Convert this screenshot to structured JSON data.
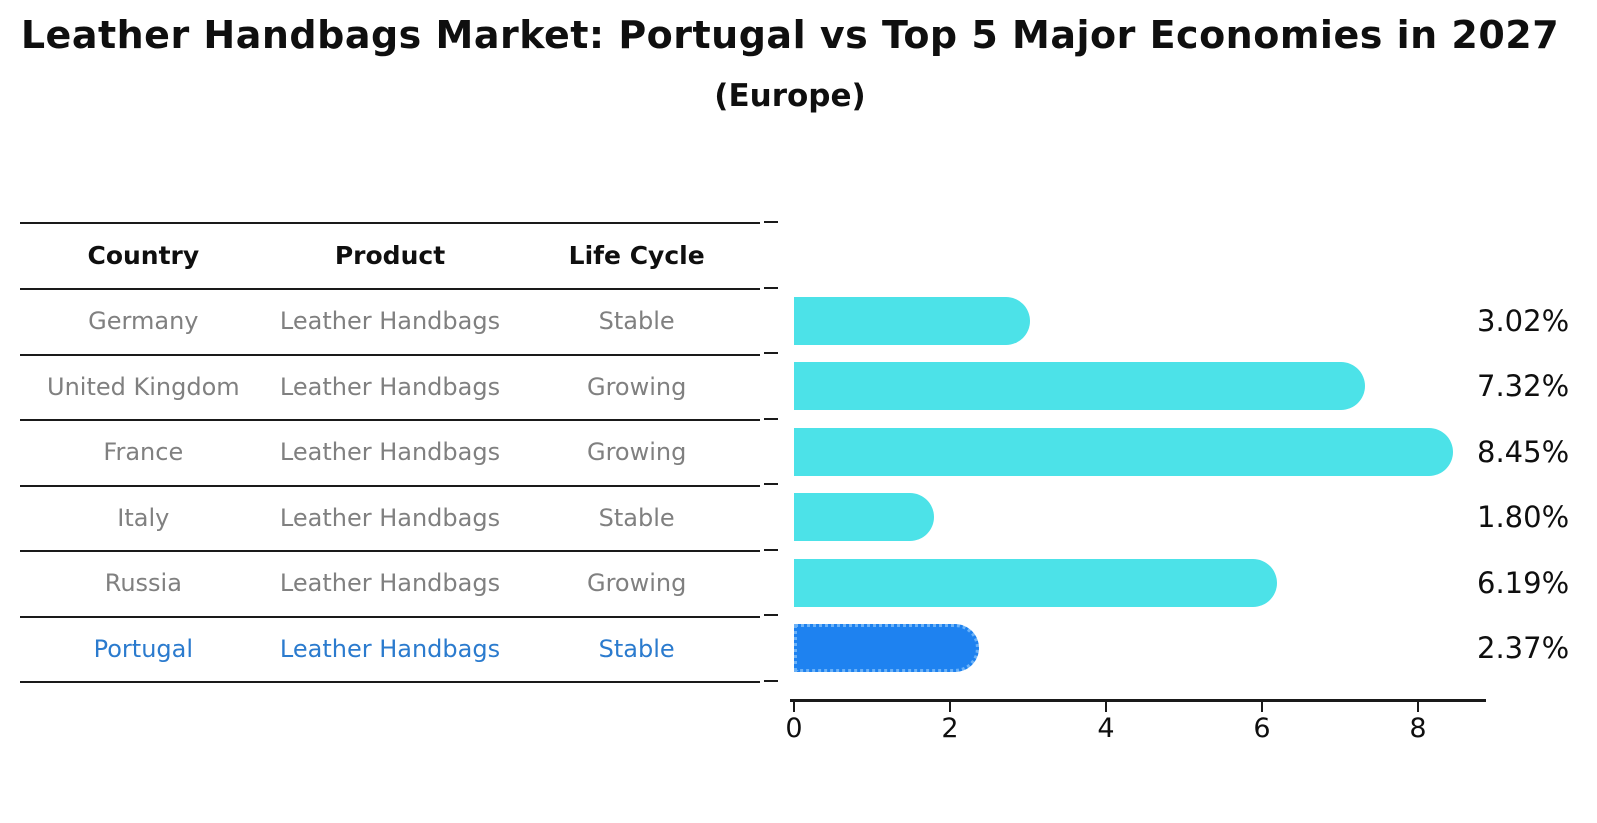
{
  "title": "Leather Handbags Market: Portugal vs Top 5 Major Economies in 2027",
  "subtitle": "(Europe)",
  "table": {
    "headers": [
      "Country",
      "Product",
      "Life Cycle"
    ],
    "highlight_text_color": "#2b7bce",
    "rows": [
      {
        "country": "Germany",
        "product": "Leather Handbags",
        "life_cycle": "Stable",
        "highlight": false
      },
      {
        "country": "United Kingdom",
        "product": "Leather Handbags",
        "life_cycle": "Growing",
        "highlight": false
      },
      {
        "country": "France",
        "product": "Leather Handbags",
        "life_cycle": "Growing",
        "highlight": false
      },
      {
        "country": "Italy",
        "product": "Leather Handbags",
        "life_cycle": "Stable",
        "highlight": false
      },
      {
        "country": "Russia",
        "product": "Leather Handbags",
        "life_cycle": "Growing",
        "highlight": false
      },
      {
        "country": "Portugal",
        "product": "Leather Handbags",
        "life_cycle": "Stable",
        "highlight": true
      }
    ]
  },
  "chart_data": {
    "type": "bar",
    "orientation": "horizontal",
    "title": "Leather Handbags Market: Portugal vs Top 5 Major Economies in 2027 (Europe)",
    "categories": [
      "Germany",
      "United Kingdom",
      "France",
      "Italy",
      "Russia",
      "Portugal"
    ],
    "values": [
      3.02,
      7.32,
      8.45,
      1.8,
      6.19,
      2.37
    ],
    "value_labels": [
      "3.02%",
      "7.32%",
      "8.45%",
      "1.80%",
      "6.19%",
      "2.37%"
    ],
    "unit": "%",
    "xticks": [
      "0",
      "2",
      "4",
      "6",
      "8"
    ],
    "xlim": [
      0,
      8.9
    ],
    "grid": false,
    "legend": false,
    "bar_color": "#4ce2e8",
    "highlight_bar_color": "#1e82f0",
    "highlight_index": 5
  }
}
